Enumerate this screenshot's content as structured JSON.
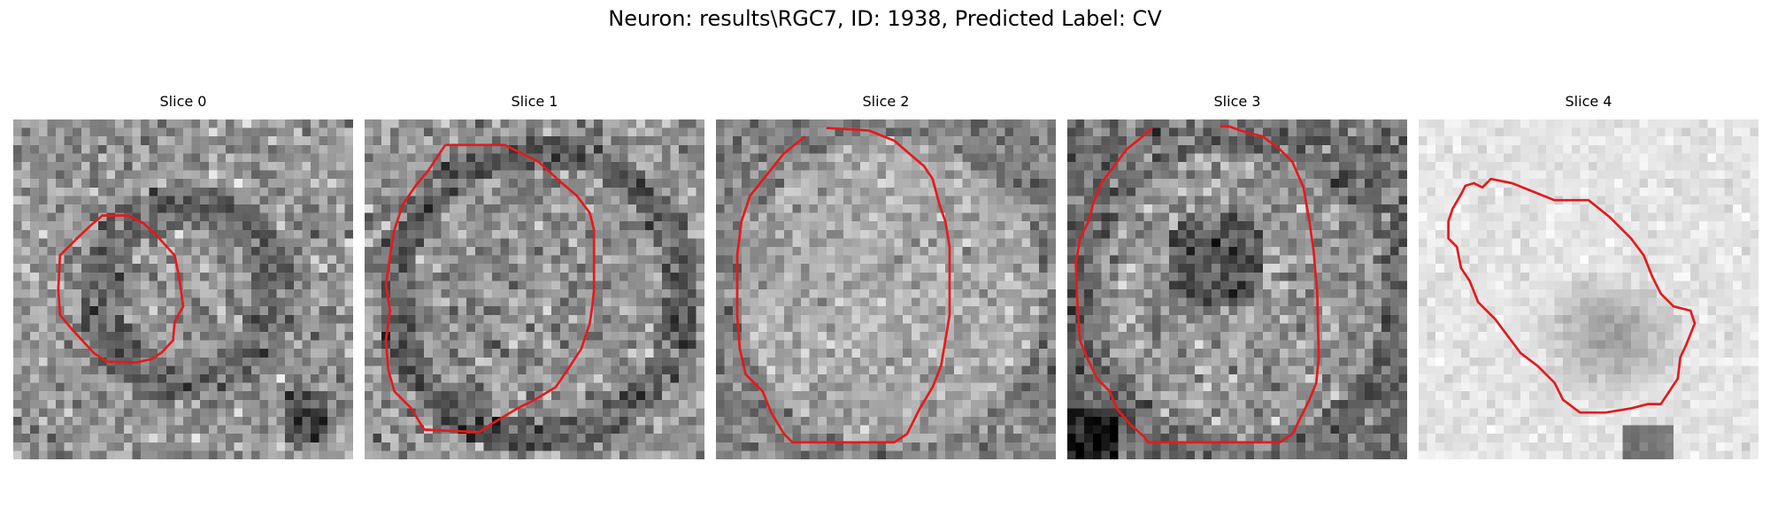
{
  "figure": {
    "title": "Neuron: results\\RGC7, ID: 1938, Predicted Label: CV"
  },
  "contour_color": "#e41a1c",
  "slices": [
    {
      "title": "Slice 0",
      "background": "medium-gray-noise",
      "contour": [
        [
          13.5,
          11.3
        ],
        [
          10.5,
          11.3
        ],
        [
          9.3,
          12.3
        ],
        [
          7.5,
          14.0
        ],
        [
          5.5,
          16.0
        ],
        [
          5.3,
          20.0
        ],
        [
          5.5,
          23.0
        ],
        [
          7.0,
          24.8
        ],
        [
          9.5,
          27.5
        ],
        [
          11.0,
          28.5
        ],
        [
          14.5,
          28.6
        ],
        [
          16.3,
          28.2
        ],
        [
          17.5,
          27.4
        ],
        [
          18.8,
          26.0
        ],
        [
          19.0,
          23.8
        ],
        [
          20.0,
          22.0
        ],
        [
          19.6,
          19.0
        ],
        [
          19.0,
          16.0
        ],
        [
          17.0,
          13.8
        ],
        [
          15.3,
          12.2
        ]
      ]
    },
    {
      "title": "Slice 1",
      "background": "medium-gray-noise",
      "contour": [
        [
          9.5,
          3.0
        ],
        [
          16.5,
          3.0
        ],
        [
          20.5,
          5.0
        ],
        [
          23.0,
          7.3
        ],
        [
          25.0,
          9.0
        ],
        [
          26.5,
          11.0
        ],
        [
          27.0,
          13.0
        ],
        [
          27.0,
          16.0
        ],
        [
          27.0,
          20.0
        ],
        [
          26.8,
          22.0
        ],
        [
          26.5,
          24.0
        ],
        [
          25.5,
          27.0
        ],
        [
          24.0,
          29.3
        ],
        [
          22.5,
          31.5
        ],
        [
          20.0,
          33.0
        ],
        [
          18.0,
          34.0
        ],
        [
          15.0,
          35.8
        ],
        [
          13.5,
          36.8
        ],
        [
          9.0,
          36.6
        ],
        [
          7.0,
          36.5
        ],
        [
          5.5,
          34.0
        ],
        [
          3.5,
          32.0
        ],
        [
          2.8,
          29.5
        ],
        [
          2.5,
          26.0
        ],
        [
          3.0,
          22.5
        ],
        [
          2.5,
          19.5
        ],
        [
          3.0,
          16.0
        ],
        [
          3.5,
          13.0
        ],
        [
          4.5,
          10.0
        ],
        [
          6.0,
          7.8
        ],
        [
          7.5,
          6.0
        ]
      ]
    },
    {
      "title": "Slice 2",
      "background": "light-gray-noise",
      "contour": [
        [
          13.0,
          1.0
        ],
        [
          18.0,
          1.3
        ],
        [
          21.0,
          2.5
        ],
        [
          22.5,
          3.8
        ],
        [
          24.5,
          5.5
        ],
        [
          25.5,
          7.0
        ],
        [
          26.3,
          10.0
        ],
        [
          27.0,
          12.0
        ],
        [
          27.5,
          15.0
        ],
        [
          27.5,
          19.0
        ],
        [
          27.5,
          23.0
        ],
        [
          27.0,
          26.0
        ],
        [
          26.5,
          29.0
        ],
        [
          25.5,
          31.5
        ],
        [
          24.0,
          34.0
        ],
        [
          22.5,
          37.0
        ],
        [
          21.0,
          38.0
        ],
        [
          9.0,
          38.0
        ],
        [
          8.0,
          37.0
        ],
        [
          6.5,
          34.5
        ],
        [
          5.5,
          32.0
        ],
        [
          3.5,
          30.0
        ],
        [
          2.8,
          27.0
        ],
        [
          2.5,
          23.0
        ],
        [
          2.5,
          19.0
        ],
        [
          2.5,
          16.0
        ],
        [
          3.0,
          12.0
        ],
        [
          4.0,
          9.0
        ],
        [
          6.0,
          6.5
        ],
        [
          8.0,
          4.0
        ],
        [
          10.5,
          2.0
        ]
      ]
    },
    {
      "title": "Slice 3",
      "background": "medium-gray-noise",
      "contour": [
        [
          10.0,
          1.0
        ],
        [
          8.5,
          2.3
        ],
        [
          7.0,
          3.5
        ],
        [
          5.5,
          5.5
        ],
        [
          4.0,
          7.5
        ],
        [
          3.0,
          10.0
        ],
        [
          2.5,
          12.0
        ],
        [
          1.5,
          14.0
        ],
        [
          1.0,
          17.0
        ],
        [
          1.2,
          22.0
        ],
        [
          1.5,
          26.0
        ],
        [
          2.3,
          28.0
        ],
        [
          3.5,
          30.5
        ],
        [
          5.0,
          32.0
        ],
        [
          5.8,
          34.0
        ],
        [
          7.5,
          36.0
        ],
        [
          9.0,
          37.3
        ],
        [
          9.5,
          38.0
        ],
        [
          25.0,
          38.0
        ],
        [
          26.5,
          37.0
        ],
        [
          27.0,
          36.0
        ],
        [
          28.5,
          33.0
        ],
        [
          29.3,
          31.0
        ],
        [
          29.6,
          28.0
        ],
        [
          29.5,
          24.0
        ],
        [
          29.4,
          20.0
        ],
        [
          29.2,
          18.0
        ],
        [
          29.0,
          15.5
        ],
        [
          28.5,
          12.0
        ],
        [
          27.8,
          8.0
        ],
        [
          26.5,
          5.0
        ],
        [
          25.0,
          3.5
        ],
        [
          23.0,
          2.0
        ],
        [
          21.0,
          1.5
        ],
        [
          19.0,
          0.8
        ],
        [
          18.0,
          0.8
        ]
      ]
    },
    {
      "title": "Slice 4",
      "background": "very-light-gray-noise",
      "contour": [
        [
          11.0,
          7.5
        ],
        [
          13.5,
          8.5
        ],
        [
          16.0,
          9.5
        ],
        [
          20.0,
          9.5
        ],
        [
          22.5,
          11.5
        ],
        [
          25.0,
          14.0
        ],
        [
          26.5,
          16.0
        ],
        [
          27.5,
          18.5
        ],
        [
          28.5,
          20.5
        ],
        [
          30.0,
          22.0
        ],
        [
          32.0,
          22.5
        ],
        [
          32.5,
          24.0
        ],
        [
          31.5,
          26.5
        ],
        [
          30.8,
          28.0
        ],
        [
          30.5,
          30.5
        ],
        [
          29.5,
          32.0
        ],
        [
          28.5,
          33.5
        ],
        [
          27.0,
          33.5
        ],
        [
          25.0,
          34.0
        ],
        [
          22.0,
          34.5
        ],
        [
          19.0,
          34.5
        ],
        [
          17.0,
          33.0
        ],
        [
          16.0,
          31.0
        ],
        [
          14.0,
          29.0
        ],
        [
          12.0,
          27.5
        ],
        [
          10.5,
          25.5
        ],
        [
          9.0,
          23.5
        ],
        [
          7.0,
          21.5
        ],
        [
          6.0,
          19.0
        ],
        [
          5.0,
          17.5
        ],
        [
          4.5,
          15.0
        ],
        [
          3.5,
          14.0
        ],
        [
          3.5,
          12.0
        ],
        [
          4.0,
          10.5
        ],
        [
          5.0,
          8.8
        ],
        [
          5.5,
          7.8
        ],
        [
          6.5,
          7.5
        ],
        [
          7.5,
          8.0
        ],
        [
          8.5,
          7.0
        ]
      ]
    }
  ]
}
